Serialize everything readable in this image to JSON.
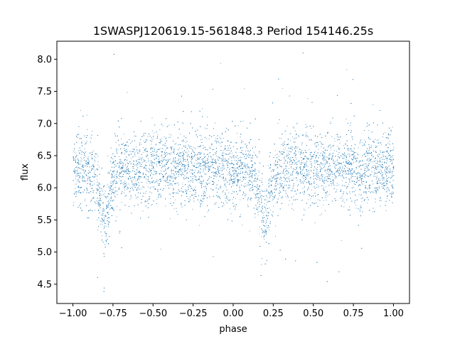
{
  "chart_data": {
    "type": "scatter",
    "title": "1SWASPJ120619.15-561848.3 Period 154146.25s",
    "xlabel": "phase",
    "ylabel": "flux",
    "xlim": [
      -1.1,
      1.1
    ],
    "ylim": [
      4.2,
      8.28
    ],
    "xticks": [
      -1.0,
      -0.75,
      -0.5,
      -0.25,
      0.0,
      0.25,
      0.5,
      0.75,
      1.0
    ],
    "xtick_labels": [
      "−1.00",
      "−0.75",
      "−0.50",
      "−0.25",
      "0.00",
      "0.25",
      "0.50",
      "0.75",
      "1.00"
    ],
    "yticks": [
      4.5,
      5.0,
      5.5,
      6.0,
      6.5,
      7.0,
      7.5,
      8.0
    ],
    "ytick_labels": [
      "4.5",
      "5.0",
      "5.5",
      "6.0",
      "6.5",
      "7.0",
      "7.5",
      "8.0"
    ],
    "grid": false,
    "marker_color": "#1f77b4",
    "light_curve_profile": {
      "phase": [
        -1.0,
        -0.95,
        -0.9,
        -0.86,
        -0.83,
        -0.81,
        -0.79,
        -0.77,
        -0.75,
        -0.7,
        -0.6,
        -0.5,
        -0.4,
        -0.3,
        -0.2,
        -0.1,
        0.0,
        0.1,
        0.14,
        0.17,
        0.19,
        0.21,
        0.23,
        0.25,
        0.3,
        0.4,
        0.5,
        0.6,
        0.7,
        0.8,
        0.9,
        1.0
      ],
      "median_flux": [
        6.28,
        6.3,
        6.25,
        6.1,
        5.75,
        5.45,
        5.55,
        5.9,
        6.2,
        6.3,
        6.32,
        6.33,
        6.32,
        6.3,
        6.3,
        6.3,
        6.28,
        6.25,
        6.1,
        5.8,
        5.55,
        5.55,
        5.85,
        6.15,
        6.3,
        6.32,
        6.33,
        6.32,
        6.3,
        6.28,
        6.28,
        6.28
      ],
      "scatter_sigma": 0.28
    }
  }
}
